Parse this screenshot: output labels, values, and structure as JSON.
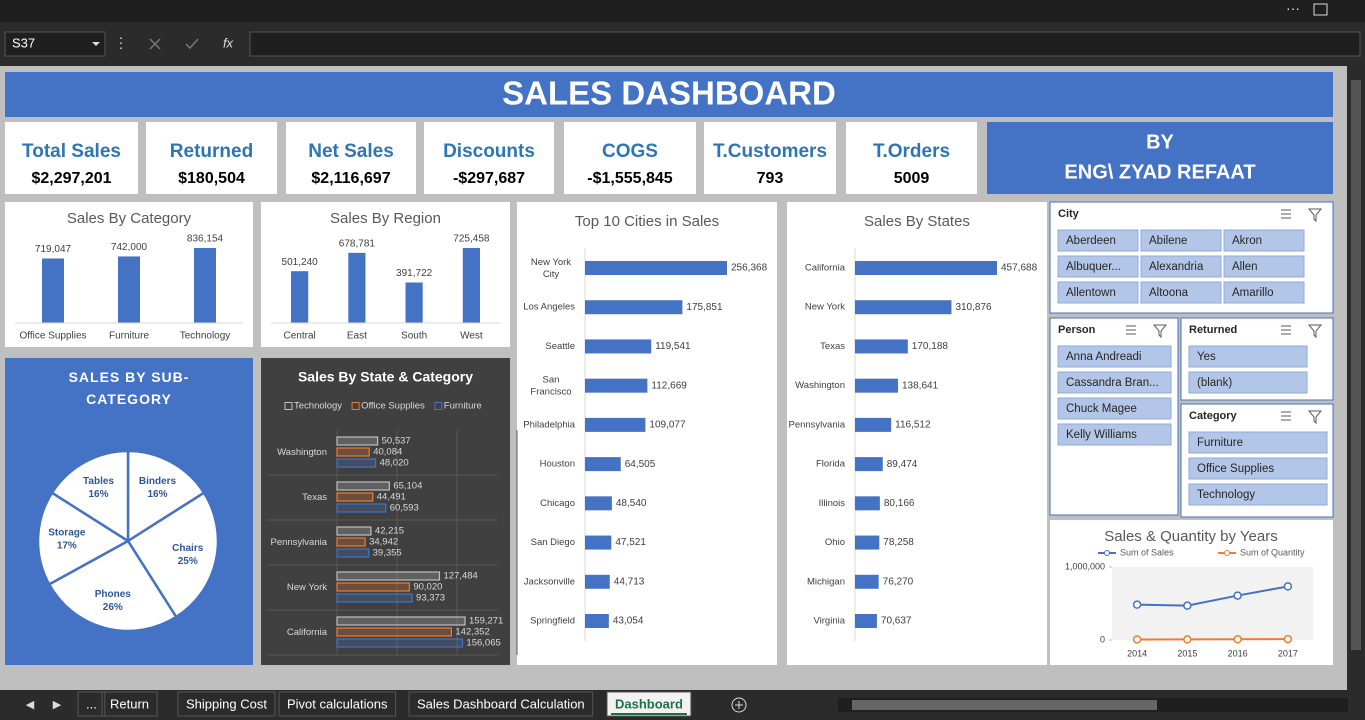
{
  "window": {
    "name_box": "S37",
    "fx": "fx"
  },
  "header": {
    "title": "SALES DASHBOARD"
  },
  "kpis": [
    {
      "label": "Total Sales",
      "value": "$2,297,201"
    },
    {
      "label": "Returned",
      "value": "$180,504"
    },
    {
      "label": "Net Sales",
      "value": "$2,116,697"
    },
    {
      "label": "Discounts",
      "value": "-$297,687"
    },
    {
      "label": "COGS",
      "value": "-$1,555,845"
    },
    {
      "label": "T.Customers",
      "value": "793"
    },
    {
      "label": "T.Orders",
      "value": "5009"
    }
  ],
  "author": {
    "line1": "BY",
    "line2": "ENG\\ ZYAD REFAAT"
  },
  "chart_data": [
    {
      "type": "bar",
      "title": "Sales By Category",
      "categories": [
        "Office Supplies",
        "Furniture",
        "Technology"
      ],
      "values": [
        719047,
        742000,
        836154
      ],
      "value_labels": [
        "719,047",
        "742,000",
        "836,154"
      ],
      "color": "#4472c4"
    },
    {
      "type": "bar",
      "title": "Sales By Region",
      "categories": [
        "Central",
        "East",
        "South",
        "West"
      ],
      "values": [
        501240,
        678781,
        391722,
        725458
      ],
      "value_labels": [
        "501,240",
        "678,781",
        "391,722",
        "725,458"
      ],
      "color": "#4472c4"
    },
    {
      "type": "hbar",
      "title": "Top 10 Cities in Sales",
      "categories": [
        "New York City",
        "Los Angeles",
        "Seattle",
        "San Francisco",
        "Philadelphia",
        "Houston",
        "Chicago",
        "San Diego",
        "Jacksonville",
        "Springfield"
      ],
      "values": [
        256368,
        175851,
        119541,
        112669,
        109077,
        64505,
        48540,
        47521,
        44713,
        43054
      ],
      "value_labels": [
        "256,368",
        "175,851",
        "119,541",
        "112,669",
        "109,077",
        "64,505",
        "48,540",
        "47,521",
        "44,713",
        "43,054"
      ],
      "color": "#4472c4"
    },
    {
      "type": "hbar",
      "title": "Sales By States",
      "categories": [
        "California",
        "New York",
        "Texas",
        "Washington",
        "Pennsylvania",
        "Florida",
        "Illinois",
        "Ohio",
        "Michigan",
        "Virginia"
      ],
      "values": [
        457688,
        310876,
        170188,
        138641,
        116512,
        89474,
        80166,
        78258,
        76270,
        70637
      ],
      "value_labels": [
        "457,688",
        "310,876",
        "170,188",
        "138,641",
        "116,512",
        "89,474",
        "80,166",
        "78,258",
        "76,270",
        "70,637"
      ],
      "color": "#4472c4"
    },
    {
      "type": "pie",
      "title": "SALES BY SUB-CATEGORY",
      "categories": [
        "Binders",
        "Chairs",
        "Phones",
        "Storage",
        "Tables"
      ],
      "values": [
        16,
        25,
        26,
        17,
        16
      ],
      "value_labels": [
        "16%",
        "25%",
        "26%",
        "17%",
        "16%"
      ],
      "color": "#ffffff"
    },
    {
      "type": "grouped-hbar",
      "title": "Sales By State & Category",
      "legend": "top",
      "categories": [
        "Washington",
        "Texas",
        "Pennsylvania",
        "New York",
        "California"
      ],
      "series": [
        {
          "name": "Technology",
          "color": "#bfbfbf",
          "values": [
            50537,
            65104,
            42215,
            127484,
            159271
          ],
          "value_labels": [
            "50,537",
            "65,104",
            "42,215",
            "127,484",
            "159,271"
          ]
        },
        {
          "name": "Office Supplies",
          "color": "#ed7d31",
          "values": [
            40084,
            44491,
            34942,
            90020,
            142352
          ],
          "value_labels": [
            "40,084",
            "44,491",
            "34,942",
            "90,020",
            "142,352"
          ]
        },
        {
          "name": "Furniture",
          "color": "#4472c4",
          "values": [
            48020,
            60593,
            39355,
            93373,
            156065
          ],
          "value_labels": [
            "48,020",
            "60,593",
            "39,355",
            "93,373",
            "156,065"
          ]
        }
      ]
    },
    {
      "type": "line",
      "title": "Sales & Quantity by Years",
      "legend": "top",
      "categories": [
        "2014",
        "2015",
        "2016",
        "2017"
      ],
      "series": [
        {
          "name": "Sum of Sales",
          "color": "#4472c4",
          "values": [
            484247,
            470533,
            608473,
            733947
          ]
        },
        {
          "name": "Sum of Quantity",
          "color": "#ed7d31",
          "values": [
            7581,
            8253,
            9837,
            12476
          ]
        }
      ],
      "ylim": [
        0,
        1000000
      ],
      "yticks": [
        0,
        {
          "value": 1000000,
          "label": "1,000,000"
        }
      ]
    }
  ],
  "slicers": [
    {
      "title": "City",
      "items": [
        "Aberdeen",
        "Abilene",
        "Akron",
        "Albuquer...",
        "Alexandria",
        "Allen",
        "Allentown",
        "Altoona",
        "Amarillo"
      ]
    },
    {
      "title": "Person",
      "items": [
        "Anna Andreadi",
        "Cassandra Bran...",
        "Chuck Magee",
        "Kelly Williams"
      ]
    },
    {
      "title": "Returned",
      "items": [
        "Yes",
        "(blank)"
      ]
    },
    {
      "title": "Category",
      "items": [
        "Furniture",
        "Office Supplies",
        "Technology"
      ]
    }
  ],
  "tabs": {
    "items": [
      "...",
      "Return",
      "Shipping Cost",
      "Pivot calculations",
      "Sales Dashboard Calculation",
      "Dashboard"
    ],
    "active": 5
  }
}
